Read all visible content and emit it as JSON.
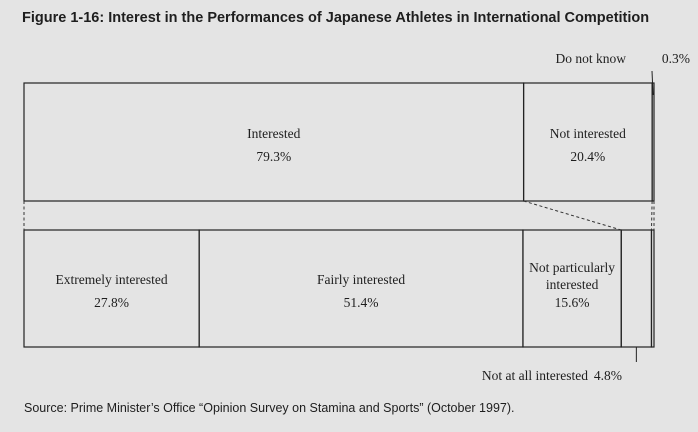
{
  "title": "Figure 1-16: Interest in the Performances of Japanese Athletes in International Competition",
  "source": "Source: Prime Minister’s Office “Opinion Survey on Stamina and Sports” (October 1997).",
  "chart_data": {
    "type": "bar",
    "orientation": "horizontal-stacked",
    "unit": "%",
    "bars": [
      {
        "segments": [
          {
            "label": "Interested",
            "value": 79.3,
            "value_label": "79.3%"
          },
          {
            "label": "Not interested",
            "value": 20.4,
            "value_label": "20.4%"
          },
          {
            "label": "Do not know",
            "value": 0.3,
            "value_label": "0.3%"
          }
        ]
      },
      {
        "segments": [
          {
            "label": "Extremely interested",
            "value": 27.8,
            "value_label": "27.8%"
          },
          {
            "label": "Fairly interested",
            "value": 51.4,
            "value_label": "51.4%"
          },
          {
            "label": "Not particularly interested",
            "value": 15.6,
            "value_label": "15.6%"
          },
          {
            "label": "Not at all interested",
            "value": 4.8,
            "value_label": "4.8%"
          },
          {
            "label": "Do not know",
            "value": 0.3,
            "value_label": ""
          }
        ]
      }
    ],
    "callouts": [
      {
        "label": "Do not know",
        "value_label": "0.3%"
      },
      {
        "label": "Not at all interested",
        "value_label": "4.8%"
      }
    ]
  }
}
